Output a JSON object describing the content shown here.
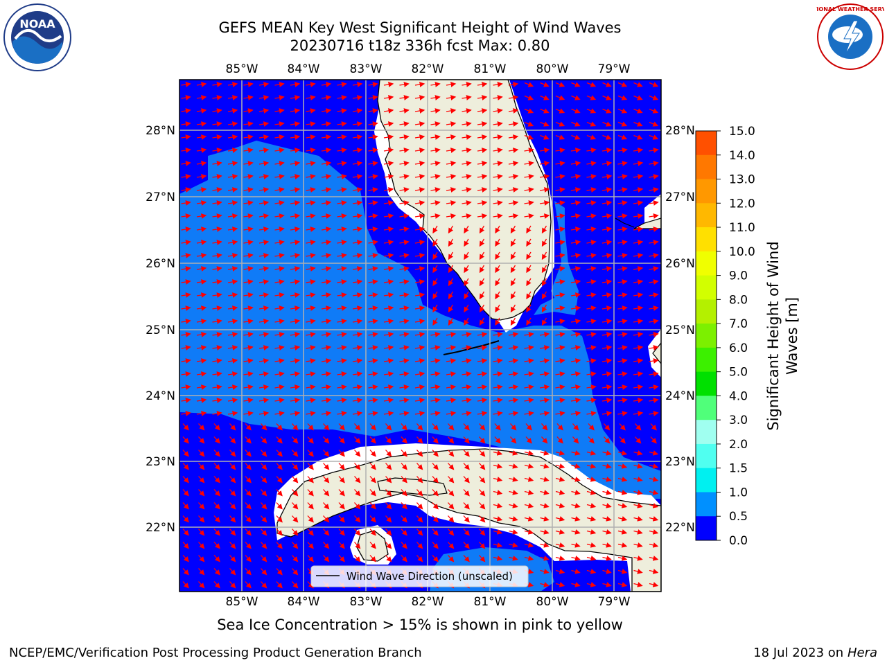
{
  "title": {
    "line1": "GEFS MEAN Key West Significant Height of Wind Waves",
    "line2": "20230716 t18z 336h fcst   Max: 0.80"
  },
  "map": {
    "lon_labels": [
      "85°W",
      "84°W",
      "83°W",
      "82°W",
      "81°W",
      "80°W",
      "79°W"
    ],
    "lat_labels": [
      "28°N",
      "27°N",
      "26°N",
      "25°N",
      "24°N",
      "23°N",
      "22°N"
    ],
    "legend_label": "Wind Wave Direction (unscaled)",
    "colors": {
      "ocean_low": "#0000fe",
      "ocean_mid": "#0f7bf7",
      "land": "#eeeedc",
      "arrow": "#ff0000",
      "grid": "#b0b0b0"
    }
  },
  "colorbar": {
    "label_line1": "Significant Height of Wind",
    "label_line2": "Waves [m]",
    "ticks": [
      "15.0",
      "14.0",
      "13.0",
      "12.0",
      "11.0",
      "10.0",
      "9.0",
      "8.0",
      "7.0",
      "6.0",
      "5.0",
      "4.0",
      "3.0",
      "2.0",
      "1.5",
      "1.0",
      "0.5",
      "0.0"
    ],
    "colors": [
      "#ff0000",
      "#ff2800",
      "#ff5000",
      "#ff7800",
      "#ff9800",
      "#ffb800",
      "#ffe000",
      "#f0ff00",
      "#d2ff00",
      "#b4f000",
      "#7cf000",
      "#3cf000",
      "#00e000",
      "#50ff7a",
      "#a0fff0",
      "#50fff0",
      "#00f0f0",
      "#0090ff",
      "#0000fe"
    ]
  },
  "notes": {
    "sea_ice": "Sea Ice Concentration > 15% is shown in pink to yellow"
  },
  "footer": {
    "left": "NCEP/EMC/Verification Post Processing Product Generation Branch",
    "right_prefix": "18 Jul 2023 on ",
    "right_host": "Hera"
  },
  "logos": {
    "left_text": "NOAA",
    "right_text": "NATIONAL WEATHER SERVICE"
  }
}
